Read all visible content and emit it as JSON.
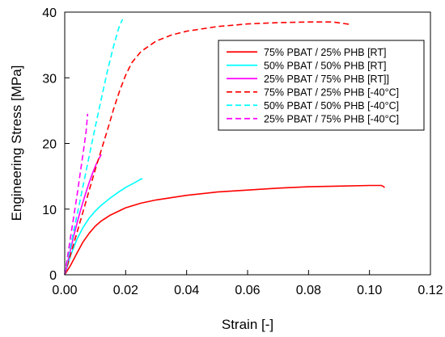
{
  "chart_data": {
    "type": "line",
    "title": "",
    "xlabel": "Strain [-]",
    "ylabel": "Engineering Stress [MPa]",
    "xlim": [
      0,
      0.12
    ],
    "ylim": [
      0,
      40
    ],
    "xticks": [
      0,
      0.02,
      0.04,
      0.06,
      0.08,
      0.1,
      0.12
    ],
    "xtick_labels": [
      "0.00",
      "0.02",
      "0.04",
      "0.06",
      "0.08",
      "0.10",
      "0.12"
    ],
    "yticks": [
      0,
      10,
      20,
      30,
      40
    ],
    "ytick_labels": [
      "0",
      "10",
      "20",
      "30",
      "40"
    ],
    "grid": false,
    "legend_position": "top-right",
    "series": [
      {
        "name": "75% PBAT / 25% PHB [RT]",
        "color": "#ff0000",
        "dash": "solid",
        "x": [
          0,
          0.002,
          0.004,
          0.006,
          0.008,
          0.01,
          0.012,
          0.015,
          0.02,
          0.025,
          0.03,
          0.04,
          0.05,
          0.06,
          0.07,
          0.08,
          0.09,
          0.1,
          0.104,
          0.105
        ],
        "y": [
          0,
          1.5,
          3.3,
          5.0,
          6.3,
          7.4,
          8.2,
          9.1,
          10.2,
          10.9,
          11.4,
          12.1,
          12.6,
          12.9,
          13.2,
          13.4,
          13.5,
          13.6,
          13.6,
          13.3
        ]
      },
      {
        "name": "50% PBAT / 50% PHB [RT]",
        "color": "#00ffff",
        "dash": "solid",
        "x": [
          0,
          0.002,
          0.004,
          0.006,
          0.008,
          0.01,
          0.012,
          0.015,
          0.018,
          0.02,
          0.022,
          0.024,
          0.025,
          0.0255
        ],
        "y": [
          0,
          3.0,
          5.4,
          7.2,
          8.6,
          9.7,
          10.6,
          11.7,
          12.7,
          13.3,
          13.8,
          14.3,
          14.6,
          14.6
        ]
      },
      {
        "name": "25% PBAT / 75% PHB [RT]]",
        "color": "#ff00ff",
        "dash": "solid",
        "x": [
          0,
          0.001,
          0.002,
          0.003,
          0.004,
          0.005,
          0.006,
          0.007,
          0.008,
          0.009,
          0.01,
          0.011,
          0.012
        ],
        "y": [
          0,
          2.0,
          4.0,
          6.0,
          7.8,
          9.5,
          11.1,
          12.6,
          14.0,
          15.3,
          16.5,
          17.5,
          18.3
        ]
      },
      {
        "name": "75% PBAT / 25% PHB [-40°C]",
        "color": "#ff0000",
        "dash": "dashed",
        "x": [
          0,
          0.002,
          0.004,
          0.006,
          0.008,
          0.01,
          0.012,
          0.014,
          0.016,
          0.018,
          0.02,
          0.022,
          0.025,
          0.03,
          0.035,
          0.04,
          0.05,
          0.06,
          0.07,
          0.08,
          0.088,
          0.094
        ],
        "y": [
          0,
          3.2,
          6.4,
          9.6,
          12.8,
          16.0,
          19.0,
          22.0,
          25.2,
          28.0,
          30.4,
          32.3,
          34.0,
          35.6,
          36.5,
          37.1,
          37.8,
          38.2,
          38.4,
          38.5,
          38.5,
          38.1
        ]
      },
      {
        "name": "50% PBAT / 50% PHB [-40°C]",
        "color": "#00ffff",
        "dash": "dashed",
        "x": [
          0,
          0.002,
          0.004,
          0.006,
          0.008,
          0.01,
          0.012,
          0.014,
          0.016,
          0.018,
          0.019
        ],
        "y": [
          0,
          4.5,
          9.0,
          13.5,
          18.0,
          22.5,
          26.8,
          31.0,
          34.8,
          38.0,
          38.9
        ]
      },
      {
        "name": "25% PBAT / 75% PHB [-40°C]",
        "color": "#ff00ff",
        "dash": "dashed",
        "x": [
          0,
          0.001,
          0.002,
          0.003,
          0.004,
          0.005,
          0.006,
          0.007,
          0.0075
        ],
        "y": [
          0,
          3.0,
          6.0,
          9.0,
          12.0,
          15.2,
          18.4,
          21.8,
          24.5
        ]
      }
    ]
  }
}
